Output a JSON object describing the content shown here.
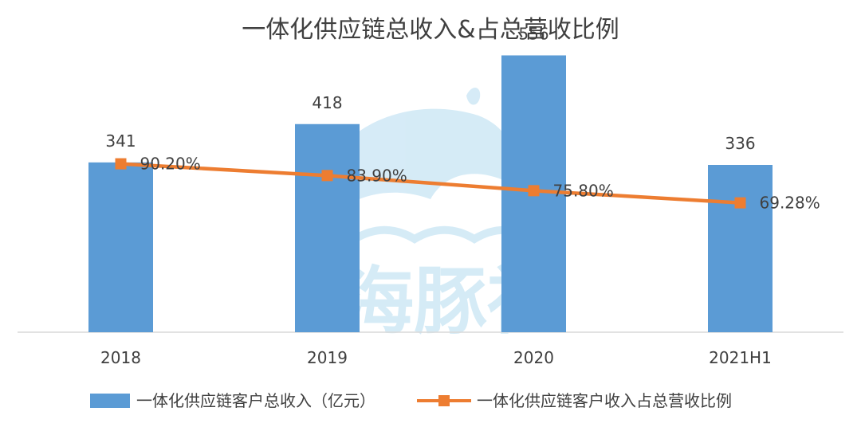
{
  "chart_data": {
    "type": "bar",
    "title": "一体化供应链总收入&占总营收比例",
    "categories": [
      "2018",
      "2019",
      "2020",
      "2021H1"
    ],
    "series": [
      {
        "name": "一体化供应链客户总收入（亿元）",
        "type": "bar",
        "axis": "left",
        "values": [
          341,
          418,
          556,
          336
        ],
        "value_labels": [
          "341",
          "418",
          "556",
          "336"
        ],
        "color": "#5b9bd5"
      },
      {
        "name": "一体化供应链客户收入占总营收比例",
        "type": "line",
        "axis": "right",
        "values": [
          90.2,
          83.9,
          75.8,
          69.28
        ],
        "value_labels": [
          "90.20%",
          "83.90%",
          "75.80%",
          "69.28%"
        ],
        "color": "#ed7d31"
      }
    ],
    "ylim": [
      0,
      600
    ],
    "y2lim": [
      0,
      160
    ],
    "grid": false,
    "legend_position": "bottom"
  },
  "watermark": {
    "text": "海豚社"
  }
}
